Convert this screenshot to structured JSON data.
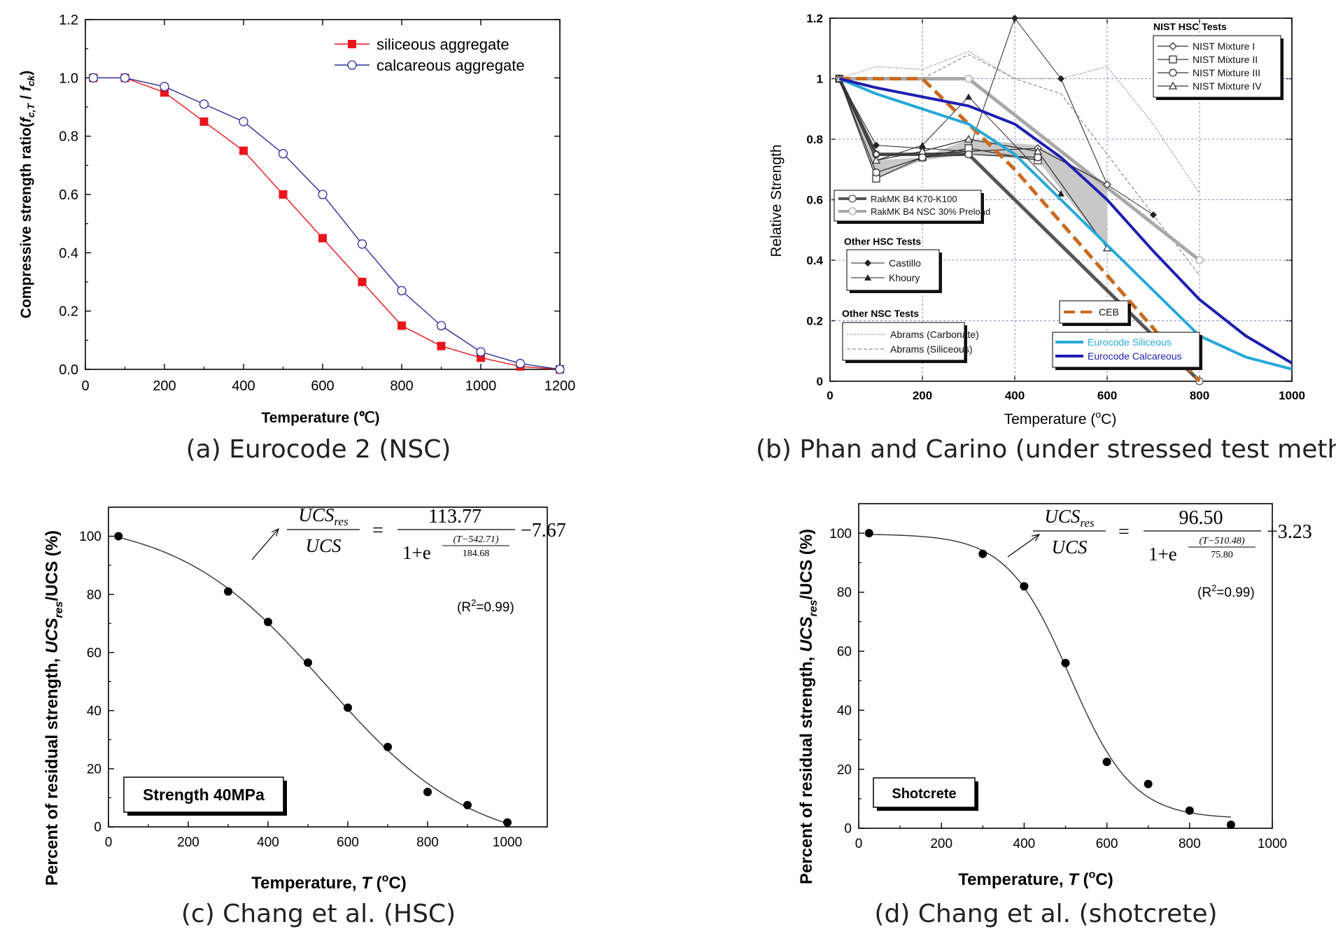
{
  "chart_data": [
    {
      "type": "line",
      "caption": "(a) Eurocode 2 (NSC)",
      "xlabel": "Temperature (℃)",
      "ylabel_main": "Compressive strength ratio(",
      "ylabel_f1": "f",
      "ylabel_sub1": "c,T",
      "ylabel_sep": " / ",
      "ylabel_f2": "f",
      "ylabel_sub2": "ck",
      "ylabel_end": ")",
      "xlim": [
        0,
        1200
      ],
      "ylim": [
        0,
        1.2
      ],
      "xticks": [
        0,
        200,
        400,
        600,
        800,
        1000,
        1200
      ],
      "xtick_labels": [
        "0",
        "200",
        "400",
        "600",
        "800",
        "1000",
        "1200"
      ],
      "yticks": [
        0,
        0.2,
        0.4,
        0.6,
        0.8,
        1.0,
        1.2
      ],
      "ytick_labels": [
        "0.0",
        "0.2",
        "0.4",
        "0.6",
        "0.8",
        "1.0",
        "1.2"
      ],
      "legend_position": "top-right",
      "series": [
        {
          "name": "siliceous aggregate",
          "color": "#e8161b",
          "marker": "filled-square",
          "x": [
            20,
            100,
            200,
            300,
            400,
            500,
            600,
            700,
            800,
            900,
            1000,
            1100,
            1200
          ],
          "y": [
            1.0,
            1.0,
            0.95,
            0.85,
            0.75,
            0.6,
            0.45,
            0.3,
            0.15,
            0.08,
            0.04,
            0.01,
            0.0
          ]
        },
        {
          "name": "calcareous aggregate",
          "color": "#2c2c9e",
          "marker": "open-circle",
          "x": [
            20,
            100,
            200,
            300,
            400,
            500,
            600,
            700,
            800,
            900,
            1000,
            1100,
            1200
          ],
          "y": [
            1.0,
            1.0,
            0.97,
            0.91,
            0.85,
            0.74,
            0.6,
            0.43,
            0.27,
            0.15,
            0.06,
            0.02,
            0.0
          ]
        }
      ]
    },
    {
      "type": "line",
      "caption": "(b) Phan and Carino (under stressed test method)",
      "xlabel_main": "Temperature (",
      "xlabel_sup": "o",
      "xlabel_end": "C)",
      "ylabel": "Relative Strength",
      "xlim": [
        0,
        1000
      ],
      "ylim": [
        0,
        1.2
      ],
      "xticks": [
        0,
        200,
        400,
        600,
        800,
        1000
      ],
      "xtick_labels": [
        "0",
        "200",
        "400",
        "600",
        "800",
        "1000"
      ],
      "yticks": [
        0,
        0.2,
        0.4,
        0.6,
        0.8,
        1,
        1.2
      ],
      "ytick_labels": [
        "0",
        "0.2",
        "0.4",
        "0.6",
        "0.8",
        "1",
        "1.2"
      ],
      "grid": true,
      "legend_groups": [
        {
          "title": "NIST HSC Tests",
          "entries": [
            "NIST Mixture I",
            "NIST Mixture II",
            "NIST Mixture III",
            "NIST Mixture IV"
          ],
          "position": "top-right"
        },
        {
          "title": "",
          "entries": [
            "RakMK B4 K70-K100",
            "RakMK B4 NSC 30% Preload"
          ],
          "position": "middle-left"
        },
        {
          "title": "Other HSC Tests",
          "entries": [
            "Castillo",
            "Khoury"
          ],
          "position": "left"
        },
        {
          "title": "Other NSC Tests",
          "entries": [
            "Abrams (Carbonate)",
            "Abrams (Siliceous)"
          ],
          "position": "bottom-left"
        },
        {
          "title": "",
          "entries": [
            "CEB"
          ],
          "position": "bottom-center"
        },
        {
          "title": "",
          "entries": [
            "Eurocode Siliceous",
            "Eurocode Calcareous"
          ],
          "position": "bottom-right"
        }
      ],
      "series": [
        {
          "name": "NIST Mixture I",
          "color": "#333333",
          "marker": "open-diamond",
          "x": [
            20,
            100,
            200,
            300,
            450,
            600
          ],
          "y": [
            1.0,
            0.75,
            0.75,
            0.76,
            0.77,
            0.65
          ]
        },
        {
          "name": "NIST Mixture II",
          "color": "#333333",
          "marker": "open-square",
          "x": [
            20,
            100,
            200,
            300,
            450
          ],
          "y": [
            1.0,
            0.67,
            0.74,
            0.77,
            0.73
          ]
        },
        {
          "name": "NIST Mixture III",
          "color": "#333333",
          "marker": "open-circle",
          "x": [
            20,
            100,
            200,
            300,
            450
          ],
          "y": [
            1.0,
            0.69,
            0.74,
            0.75,
            0.74
          ]
        },
        {
          "name": "NIST Mixture IV",
          "color": "#333333",
          "marker": "open-triangle",
          "x": [
            20,
            100,
            200,
            300,
            450,
            600
          ],
          "y": [
            1.0,
            0.73,
            0.76,
            0.8,
            0.76,
            0.44
          ]
        },
        {
          "name": "RakMK B4 K70-K100",
          "color": "#555555",
          "marker": "open-circle",
          "x": [
            20,
            100,
            300,
            800
          ],
          "y": [
            1.0,
            0.75,
            0.75,
            0.0
          ]
        },
        {
          "name": "RakMK B4 NSC 30% Preload",
          "color": "#a8a8a8",
          "marker": "open-circle",
          "x": [
            20,
            300,
            800
          ],
          "y": [
            1.0,
            1.0,
            0.4
          ]
        },
        {
          "name": "Castillo",
          "color": "#222222",
          "marker": "filled-diamond",
          "x": [
            20,
            100,
            200,
            300,
            400,
            500,
            600,
            700
          ],
          "y": [
            1.0,
            0.78,
            0.77,
            0.76,
            1.2,
            1.0,
            0.65,
            0.55
          ]
        },
        {
          "name": "Khoury",
          "color": "#222222",
          "marker": "filled-triangle",
          "x": [
            20,
            100,
            200,
            300,
            500
          ],
          "y": [
            1.0,
            0.73,
            0.78,
            0.94,
            0.62
          ]
        },
        {
          "name": "Abrams (Carbonate)",
          "color": "#777777",
          "marker": "none",
          "x": [
            20,
            100,
            200,
            300,
            400,
            500,
            600,
            700,
            800
          ],
          "y": [
            1.0,
            1.04,
            1.03,
            1.09,
            1.0,
            1.0,
            1.04,
            0.85,
            0.62
          ]
        },
        {
          "name": "Abrams (Siliceous)",
          "color": "#777777",
          "marker": "none",
          "x": [
            20,
            100,
            200,
            300,
            400,
            500,
            600,
            700,
            800
          ],
          "y": [
            1.0,
            1.0,
            1.0,
            1.08,
            1.0,
            0.95,
            0.75,
            0.55,
            0.35
          ]
        },
        {
          "name": "CEB",
          "color": "#c96a1e",
          "marker": "none",
          "x": [
            20,
            200,
            400,
            600,
            800
          ],
          "y": [
            1.0,
            1.0,
            0.7,
            0.35,
            0.0
          ]
        },
        {
          "name": "Eurocode Siliceous",
          "color": "#27a8d8",
          "marker": "none",
          "x": [
            20,
            100,
            200,
            300,
            400,
            500,
            600,
            700,
            800,
            900,
            1000
          ],
          "y": [
            1.0,
            0.95,
            0.9,
            0.85,
            0.75,
            0.6,
            0.45,
            0.3,
            0.15,
            0.08,
            0.04
          ]
        },
        {
          "name": "Eurocode Calcareous",
          "color": "#1e1eb0",
          "marker": "none",
          "x": [
            20,
            100,
            200,
            300,
            400,
            500,
            600,
            700,
            800,
            900,
            1000
          ],
          "y": [
            1.0,
            0.97,
            0.94,
            0.91,
            0.85,
            0.74,
            0.6,
            0.43,
            0.27,
            0.15,
            0.06
          ]
        }
      ]
    },
    {
      "type": "scatter",
      "caption": "(c) Chang et al. (HSC)",
      "xlabel_main": "Temperature, ",
      "xlabel_var": "T",
      "xlabel_open": " (",
      "xlabel_sup": "o",
      "xlabel_end": "C)",
      "ylabel_main": "Percent of residual strength, ",
      "ylabel_var": "UCS",
      "ylabel_sub": "res",
      "ylabel_end": "/UCS (%)",
      "xlim": [
        0,
        1100
      ],
      "ylim": [
        0,
        110
      ],
      "xticks": [
        0,
        200,
        400,
        600,
        800,
        1000
      ],
      "xtick_labels": [
        "0",
        "200",
        "400",
        "600",
        "800",
        "1000"
      ],
      "yticks": [
        0,
        20,
        40,
        60,
        80,
        100
      ],
      "ytick_labels": [
        "0",
        "20",
        "40",
        "60",
        "80",
        "100"
      ],
      "points": {
        "x": [
          25,
          300,
          400,
          500,
          600,
          700,
          800,
          900,
          1000
        ],
        "y": [
          100,
          81,
          70.5,
          56.5,
          41,
          27.5,
          12,
          7.5,
          1.5
        ]
      },
      "fit": {
        "A": 113.77,
        "x0": 542.71,
        "w": 184.68,
        "C": -7.67,
        "x_range": [
          25,
          1000
        ]
      },
      "eq_lhs_num": "UCS",
      "eq_lhs_num_sub": "res",
      "eq_lhs_den": "UCS",
      "eq_equals": "=",
      "eq_num": "113.77",
      "eq_den_main": "1+e",
      "eq_exp_num": "(T−542.71)",
      "eq_exp_den": "184.68",
      "eq_tail": "−7.67",
      "r2_open": "(R",
      "r2_sup": "2",
      "r2_close": "=0.99)",
      "label_box": "Strength 40MPa"
    },
    {
      "type": "scatter",
      "caption": "(d) Chang et al. (shotcrete)",
      "xlabel_main": "Temperature, ",
      "xlabel_var": "T",
      "xlabel_open": " (",
      "xlabel_sup": "o",
      "xlabel_end": "C)",
      "ylabel_main": "Percent of residual strength, ",
      "ylabel_var": "UCS",
      "ylabel_sub": "res",
      "ylabel_end": "/UCS (%)",
      "xlim": [
        0,
        1000
      ],
      "ylim": [
        0,
        110
      ],
      "xticks": [
        0,
        200,
        400,
        600,
        800,
        1000
      ],
      "xtick_labels": [
        "0",
        "200",
        "400",
        "600",
        "800",
        "1000"
      ],
      "yticks": [
        0,
        20,
        40,
        60,
        80,
        100
      ],
      "ytick_labels": [
        "0",
        "20",
        "40",
        "60",
        "80",
        "100"
      ],
      "points": {
        "x": [
          25,
          300,
          400,
          500,
          600,
          700,
          800,
          900
        ],
        "y": [
          100,
          93,
          82,
          56,
          22.5,
          15,
          6,
          1.2
        ]
      },
      "fit": {
        "A": 96.5,
        "x0": 510.48,
        "w": 75.8,
        "C": 3.23,
        "x_range": [
          25,
          900
        ]
      },
      "eq_lhs_num": "UCS",
      "eq_lhs_num_sub": "res",
      "eq_lhs_den": "UCS",
      "eq_equals": "=",
      "eq_num": "96.50",
      "eq_den_main": "1+e",
      "eq_exp_num": "(T−510.48)",
      "eq_exp_den": "75.80",
      "eq_tail": "+3.23",
      "r2_open": "(R",
      "r2_sup": "2",
      "r2_close": "=0.99)",
      "label_box": "Shotcrete"
    }
  ]
}
